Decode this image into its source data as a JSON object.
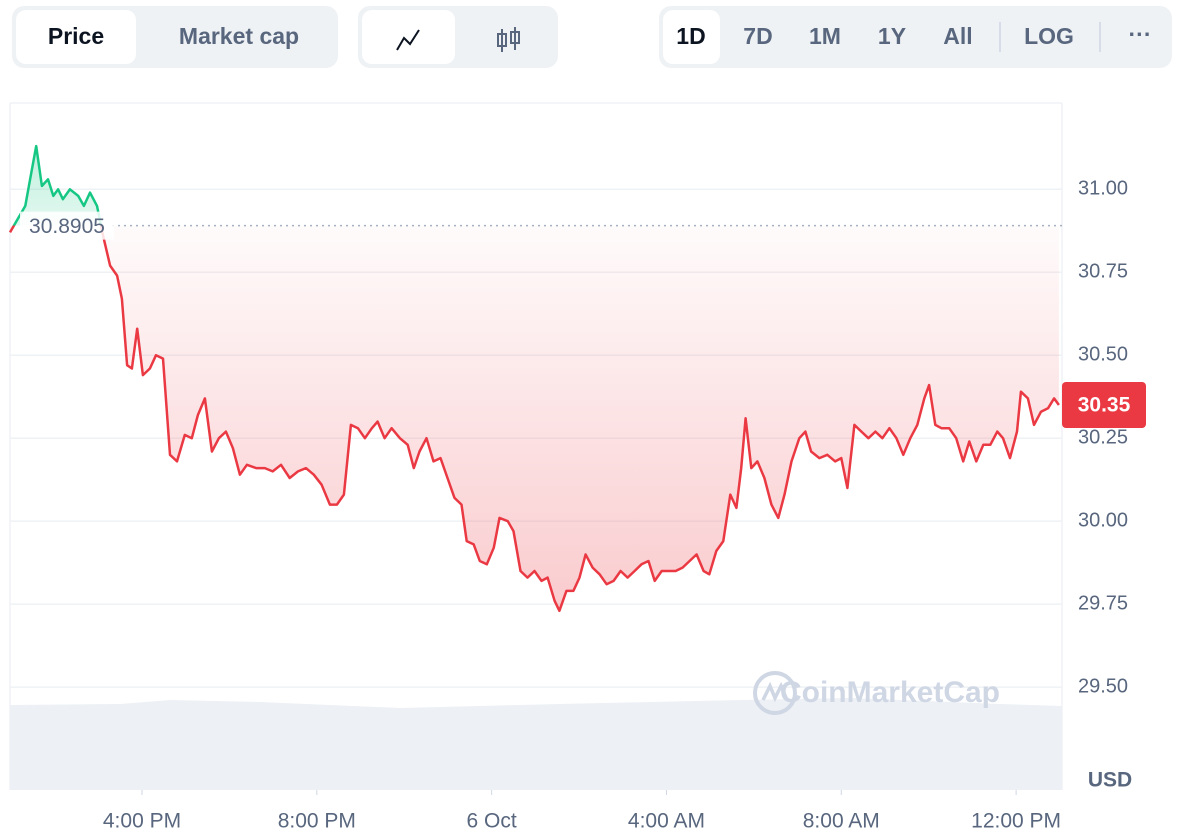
{
  "toolbar": {
    "tabs": [
      "Price",
      "Market cap"
    ],
    "ranges": [
      "1D",
      "7D",
      "1M",
      "1Y",
      "All"
    ],
    "log": "LOG",
    "more": "···"
  },
  "chart_data": {
    "type": "line",
    "unit": "USD",
    "watermark": "CoinMarketCap",
    "baseline": 30.8905,
    "current_price": 30.35,
    "up_color": "#16c784",
    "down_color": "#ea3943",
    "grid": true,
    "xlim": [
      12.98,
      37.05
    ],
    "ylim": [
      29.19,
      31.26
    ],
    "xticks": [
      {
        "value": 16,
        "label": "4:00 PM"
      },
      {
        "value": 20,
        "label": "8:00 PM"
      },
      {
        "value": 24,
        "label": "6 Oct"
      },
      {
        "value": 28,
        "label": "4:00 AM"
      },
      {
        "value": 32,
        "label": "8:00 AM"
      },
      {
        "value": 36,
        "label": "12:00 PM"
      }
    ],
    "yticks": [
      {
        "value": 29.5,
        "label": "29.50"
      },
      {
        "value": 29.75,
        "label": "29.75"
      },
      {
        "value": 30,
        "label": "30.00"
      },
      {
        "value": 30.25,
        "label": "30.25"
      },
      {
        "value": 30.5,
        "label": "30.50"
      },
      {
        "value": 30.75,
        "label": "30.75"
      },
      {
        "value": 31,
        "label": "31.00"
      }
    ],
    "x": [
      12.98,
      13.33,
      13.44,
      13.58,
      13.71,
      13.85,
      13.97,
      14.08,
      14.19,
      14.35,
      14.54,
      14.67,
      14.81,
      14.97,
      15.11,
      15.27,
      15.43,
      15.54,
      15.66,
      15.77,
      15.89,
      16.02,
      16.18,
      16.32,
      16.48,
      16.64,
      16.8,
      16.98,
      17.14,
      17.28,
      17.44,
      17.6,
      17.76,
      17.92,
      18.08,
      18.24,
      18.4,
      18.61,
      18.81,
      18.99,
      19.18,
      19.38,
      19.57,
      19.75,
      19.93,
      20.11,
      20.3,
      20.46,
      20.62,
      20.78,
      20.94,
      21.1,
      21.26,
      21.39,
      21.55,
      21.71,
      21.9,
      22.08,
      22.22,
      22.35,
      22.51,
      22.67,
      22.83,
      22.99,
      23.15,
      23.31,
      23.43,
      23.59,
      23.73,
      23.89,
      24.05,
      24.18,
      24.37,
      24.5,
      24.66,
      24.82,
      24.98,
      25.14,
      25.28,
      25.44,
      25.55,
      25.71,
      25.87,
      26.01,
      26.15,
      26.31,
      26.47,
      26.63,
      26.79,
      26.95,
      27.11,
      27.27,
      27.43,
      27.59,
      27.73,
      27.89,
      28.05,
      28.21,
      28.37,
      28.53,
      28.69,
      28.85,
      28.98,
      29.14,
      29.3,
      29.46,
      29.6,
      29.71,
      29.81,
      29.94,
      30.08,
      30.24,
      30.4,
      30.56,
      30.7,
      30.86,
      31.04,
      31.18,
      31.31,
      31.5,
      31.68,
      31.86,
      32,
      32.14,
      32.3,
      32.46,
      32.62,
      32.78,
      32.94,
      33.1,
      33.26,
      33.42,
      33.58,
      33.74,
      33.9,
      34.01,
      34.15,
      34.29,
      34.47,
      34.63,
      34.79,
      34.93,
      35.09,
      35.25,
      35.41,
      35.57,
      35.7,
      35.86,
      36.02,
      36.11,
      36.27,
      36.41,
      36.57,
      36.73,
      36.87,
      36.98
    ],
    "values": [
      30.87,
      30.95,
      31.03,
      31.13,
      31.01,
      31.03,
      30.98,
      31.0,
      30.97,
      31.0,
      30.98,
      30.95,
      30.99,
      30.95,
      30.86,
      30.77,
      30.74,
      30.67,
      30.47,
      30.46,
      30.58,
      30.44,
      30.46,
      30.5,
      30.49,
      30.2,
      30.18,
      30.26,
      30.25,
      30.32,
      30.37,
      30.21,
      30.25,
      30.27,
      30.22,
      30.14,
      30.17,
      30.16,
      30.16,
      30.15,
      30.17,
      30.13,
      30.15,
      30.16,
      30.14,
      30.11,
      30.05,
      30.05,
      30.08,
      30.29,
      30.28,
      30.25,
      30.28,
      30.3,
      30.25,
      30.28,
      30.25,
      30.23,
      30.16,
      30.21,
      30.25,
      30.18,
      30.19,
      30.13,
      30.07,
      30.05,
      29.94,
      29.93,
      29.88,
      29.87,
      29.92,
      30.01,
      30.0,
      29.97,
      29.85,
      29.83,
      29.85,
      29.82,
      29.83,
      29.76,
      29.73,
      29.79,
      29.79,
      29.83,
      29.9,
      29.86,
      29.84,
      29.81,
      29.82,
      29.85,
      29.83,
      29.85,
      29.87,
      29.88,
      29.82,
      29.85,
      29.85,
      29.85,
      29.86,
      29.88,
      29.9,
      29.85,
      29.84,
      29.91,
      29.94,
      30.08,
      30.04,
      30.16,
      30.31,
      30.16,
      30.18,
      30.13,
      30.05,
      30.01,
      30.08,
      30.18,
      30.25,
      30.27,
      30.21,
      30.19,
      30.2,
      30.18,
      30.19,
      30.1,
      30.29,
      30.27,
      30.25,
      30.27,
      30.25,
      30.28,
      30.25,
      30.2,
      30.25,
      30.29,
      30.37,
      30.41,
      30.29,
      30.28,
      30.28,
      30.25,
      30.18,
      30.24,
      30.18,
      30.23,
      30.23,
      30.27,
      30.25,
      30.19,
      30.27,
      30.39,
      30.37,
      30.29,
      30.33,
      30.34,
      30.37,
      30.35
    ]
  }
}
